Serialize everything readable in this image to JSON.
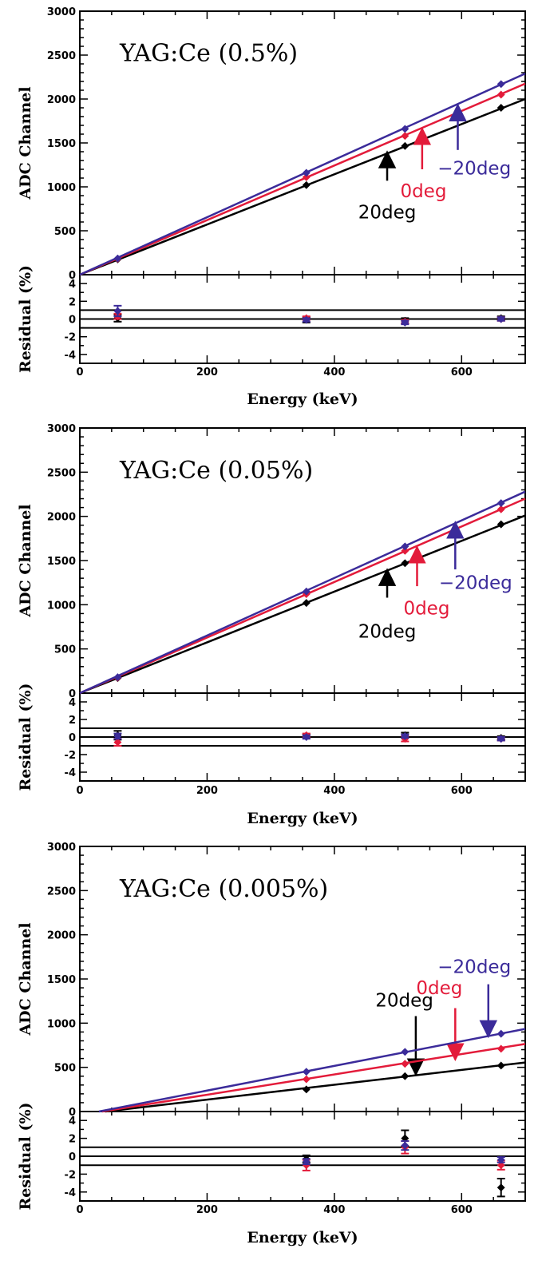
{
  "chart_data": [
    {
      "type": "line",
      "title": "YAG:Ce (0.5%)",
      "xlabel": "Energy (keV)",
      "ylabel": "ADC Channel",
      "residual_ylabel": "Residual (%)",
      "xlim": [
        0,
        700
      ],
      "ylim": [
        0,
        3000
      ],
      "residual_ylim": [
        -5,
        5
      ],
      "residual_reference_lines": [
        -1,
        0,
        1
      ],
      "grid": false,
      "x_ticks": [
        0,
        200,
        400,
        600
      ],
      "y_ticks": [
        0,
        500,
        1000,
        1500,
        2000,
        2500,
        3000
      ],
      "residual_ticks": [
        -4,
        -2,
        0,
        2,
        4
      ],
      "series": [
        {
          "name": "20deg",
          "color": "#000000",
          "fit": [
            0,
            2000
          ],
          "x": [
            59.5,
            356,
            511,
            662
          ],
          "y": [
            175,
            1020,
            1465,
            1900
          ],
          "residual": [
            0.1,
            -0.1,
            -0.2,
            0.1
          ],
          "residual_err": [
            0.4,
            0.3,
            0.3,
            0.2
          ],
          "arrow": {
            "x": 483,
            "y_from": 1070,
            "y_to": 1395,
            "label_x": 483,
            "label_y": 640
          }
        },
        {
          "name": "0deg",
          "color": "#e31b3a",
          "fit": [
            0,
            2175
          ],
          "x": [
            59.5,
            356,
            511,
            662
          ],
          "y": [
            180,
            1110,
            1580,
            2050
          ],
          "residual": [
            0.3,
            0.1,
            -0.3,
            0.0
          ],
          "residual_err": [
            0.3,
            0.2,
            0.2,
            0.2
          ],
          "arrow": {
            "x": 538,
            "y_from": 1200,
            "y_to": 1660,
            "label_x": 540,
            "label_y": 880
          }
        },
        {
          "name": "−20deg",
          "color": "#3b2b9a",
          "fit": [
            0,
            2290
          ],
          "x": [
            59.5,
            356,
            511,
            662
          ],
          "y": [
            185,
            1160,
            1660,
            2170
          ],
          "residual": [
            0.9,
            -0.1,
            -0.4,
            0.0
          ],
          "residual_err": [
            0.6,
            0.2,
            0.2,
            0.2
          ],
          "arrow": {
            "x": 594,
            "y_from": 1420,
            "y_to": 1930,
            "label_x": 620,
            "label_y": 1140
          }
        }
      ]
    },
    {
      "type": "line",
      "title": "YAG:Ce (0.05%)",
      "xlabel": "Energy (keV)",
      "ylabel": "ADC Channel",
      "residual_ylabel": "Residual (%)",
      "xlim": [
        0,
        700
      ],
      "ylim": [
        0,
        3000
      ],
      "residual_ylim": [
        -5,
        5
      ],
      "residual_reference_lines": [
        -1,
        0,
        1
      ],
      "grid": false,
      "x_ticks": [
        0,
        200,
        400,
        600
      ],
      "y_ticks": [
        0,
        500,
        1000,
        1500,
        2000,
        2500,
        3000
      ],
      "residual_ticks": [
        -4,
        -2,
        0,
        2,
        4
      ],
      "series": [
        {
          "name": "20deg",
          "color": "#000000",
          "fit": [
            0,
            2010
          ],
          "x": [
            59.5,
            356,
            511,
            662
          ],
          "y": [
            170,
            1020,
            1470,
            1910
          ],
          "residual": [
            0.2,
            0.1,
            0.2,
            -0.1
          ],
          "residual_err": [
            0.5,
            0.2,
            0.3,
            0.2
          ],
          "arrow": {
            "x": 483,
            "y_from": 1080,
            "y_to": 1395,
            "label_x": 483,
            "label_y": 630
          }
        },
        {
          "name": "0deg",
          "color": "#e31b3a",
          "fit": [
            0,
            2200
          ],
          "x": [
            59.5,
            356,
            511,
            662
          ],
          "y": [
            175,
            1120,
            1610,
            2080
          ],
          "residual": [
            -0.6,
            0.2,
            -0.2,
            -0.2
          ],
          "residual_err": [
            0.4,
            0.2,
            0.3,
            0.2
          ],
          "arrow": {
            "x": 530,
            "y_from": 1210,
            "y_to": 1650,
            "label_x": 545,
            "label_y": 890
          }
        },
        {
          "name": "−20deg",
          "color": "#3b2b9a",
          "fit": [
            0,
            2280
          ],
          "x": [
            59.5,
            356,
            511,
            662
          ],
          "y": [
            180,
            1150,
            1660,
            2150
          ],
          "residual": [
            0.1,
            0.0,
            0.1,
            -0.2
          ],
          "residual_err": [
            0.3,
            0.2,
            0.2,
            0.2
          ],
          "arrow": {
            "x": 590,
            "y_from": 1400,
            "y_to": 1930,
            "label_x": 622,
            "label_y": 1180
          }
        }
      ]
    },
    {
      "type": "line",
      "title": "YAG:Ce (0.005%)",
      "xlabel": "Energy (keV)",
      "ylabel": "ADC Channel",
      "residual_ylabel": "Residual (%)",
      "xlim": [
        0,
        700
      ],
      "ylim": [
        0,
        3000
      ],
      "residual_ylim": [
        -5,
        5
      ],
      "residual_reference_lines": [
        -1,
        0,
        1
      ],
      "grid": false,
      "x_ticks": [
        0,
        200,
        400,
        600
      ],
      "y_ticks": [
        0,
        500,
        1000,
        1500,
        2000,
        2500,
        3000
      ],
      "residual_ticks": [
        -4,
        -2,
        0,
        2,
        4
      ],
      "series": [
        {
          "name": "20deg",
          "color": "#000000",
          "fit_points": [
            [
              40,
              0
            ],
            [
              700,
              555
            ]
          ],
          "x": [
            356,
            511,
            662
          ],
          "y": [
            250,
            400,
            520
          ],
          "residual": [
            -0.3,
            2.0,
            -3.5
          ],
          "residual_err": [
            0.4,
            0.9,
            1.0
          ],
          "arrow": {
            "x": 528,
            "y_from": 1080,
            "y_to": 420,
            "label_x": 510,
            "label_y": 1190
          }
        },
        {
          "name": "0deg",
          "color": "#e31b3a",
          "fit_points": [
            [
              35,
              0
            ],
            [
              700,
              765
            ]
          ],
          "x": [
            356,
            511,
            662
          ],
          "y": [
            365,
            540,
            710
          ],
          "residual": [
            -1.0,
            1.0,
            -1.0
          ],
          "residual_err": [
            0.6,
            0.7,
            0.5
          ],
          "arrow": {
            "x": 590,
            "y_from": 1170,
            "y_to": 590,
            "label_x": 565,
            "label_y": 1330
          }
        },
        {
          "name": "−20deg",
          "color": "#3b2b9a",
          "fit_points": [
            [
              30,
              0
            ],
            [
              700,
              935
            ]
          ],
          "x": [
            356,
            511,
            662
          ],
          "y": [
            450,
            675,
            880
          ],
          "residual": [
            -0.6,
            1.2,
            -0.4
          ],
          "residual_err": [
            0.3,
            0.5,
            0.3
          ],
          "arrow": {
            "x": 642,
            "y_from": 1440,
            "y_to": 850,
            "label_x": 620,
            "label_y": 1570
          }
        }
      ]
    }
  ]
}
